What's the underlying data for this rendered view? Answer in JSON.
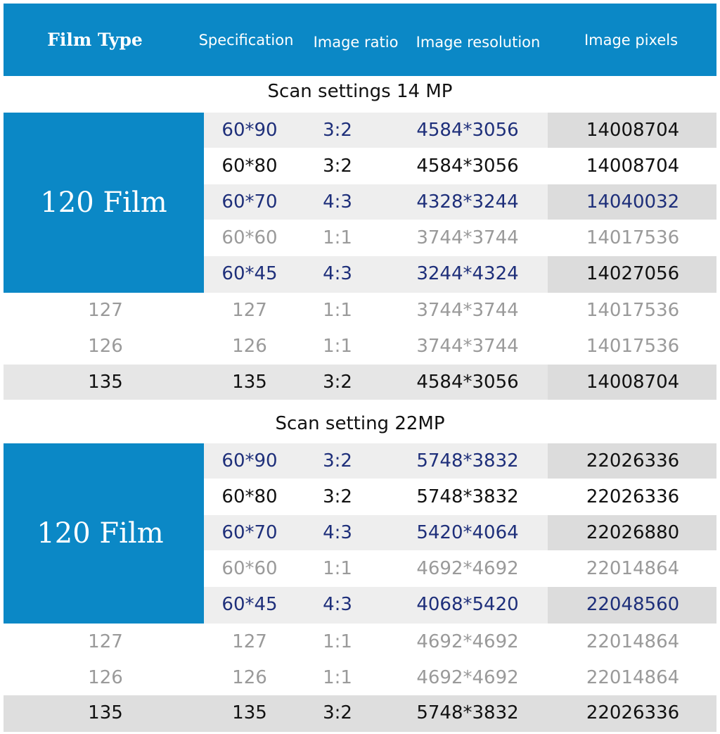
{
  "header": {
    "film_type": "Film Type",
    "specification": "Specification",
    "image_ratio": "Image ratio",
    "image_resolution": "Image resolution",
    "image_pixels": "Image pixels"
  },
  "sections": [
    {
      "title": "Scan settings 14 MP",
      "film_label": "120 Film",
      "film120_rows": [
        {
          "spec": "60*90",
          "ratio": "3:2",
          "resolution": "4584*3056",
          "pixels": "14008704"
        },
        {
          "spec": "60*80",
          "ratio": "3:2",
          "resolution": "4584*3056",
          "pixels": "14008704"
        },
        {
          "spec": "60*70",
          "ratio": "4:3",
          "resolution": "4328*3244",
          "pixels": "14040032"
        },
        {
          "spec": "60*60",
          "ratio": "1:1",
          "resolution": "3744*3744",
          "pixels": "14017536"
        },
        {
          "spec": "60*45",
          "ratio": "4:3",
          "resolution": "3244*4324",
          "pixels": "14027056"
        }
      ],
      "other_rows": [
        {
          "type": "127",
          "spec": "127",
          "ratio": "1:1",
          "resolution": "3744*3744",
          "pixels": "14017536"
        },
        {
          "type": "126",
          "spec": "126",
          "ratio": "1:1",
          "resolution": "3744*3744",
          "pixels": "14017536"
        },
        {
          "type": "135",
          "spec": "135",
          "ratio": "3:2",
          "resolution": "4584*3056",
          "pixels": "14008704"
        }
      ]
    },
    {
      "title": "Scan setting 22MP",
      "film_label": "120 Film",
      "film120_rows": [
        {
          "spec": "60*90",
          "ratio": "3:2",
          "resolution": "5748*3832",
          "pixels": "22026336"
        },
        {
          "spec": "60*80",
          "ratio": "3:2",
          "resolution": "5748*3832",
          "pixels": "22026336"
        },
        {
          "spec": "60*70",
          "ratio": "4:3",
          "resolution": "5420*4064",
          "pixels": "22026880"
        },
        {
          "spec": "60*60",
          "ratio": "1:1",
          "resolution": "4692*4692",
          "pixels": "22014864"
        },
        {
          "spec": "60*45",
          "ratio": "4:3",
          "resolution": "4068*5420",
          "pixels": "22048560"
        }
      ],
      "other_rows": [
        {
          "type": "127",
          "spec": "127",
          "ratio": "1:1",
          "resolution": "4692*4692",
          "pixels": "22014864"
        },
        {
          "type": "126",
          "spec": "126",
          "ratio": "1:1",
          "resolution": "4692*4692",
          "pixels": "22014864"
        },
        {
          "type": "135",
          "spec": "135",
          "ratio": "3:2",
          "resolution": "5748*3832",
          "pixels": "22026336"
        }
      ]
    }
  ],
  "colors": {
    "header_blue": "#0b88c6",
    "text_blue": "#1e2f7a",
    "text_black": "#111111",
    "text_gray": "#9a9a9a",
    "row_shade": "#eeeeee",
    "pixel_shade": "#dcdcdc"
  }
}
